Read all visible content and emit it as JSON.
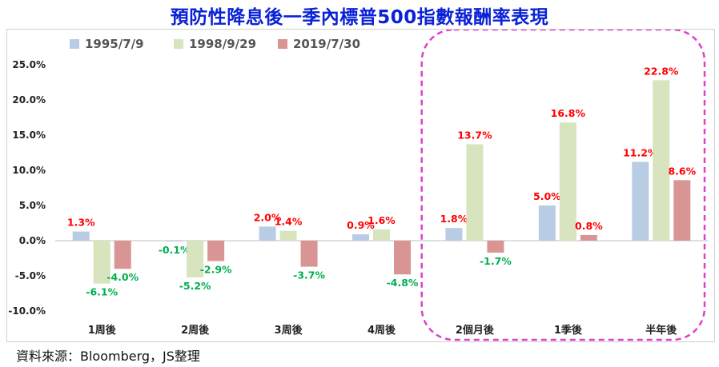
{
  "title": "預防性降息後一季內標普500指數報酬率表現",
  "source": "資料來源：Bloomberg，JS整理",
  "colors": {
    "series1": "#b8cce4",
    "series2": "#d7e4bd",
    "series3": "#d99594",
    "positive_label": "#ff0000",
    "negative_label": "#00b050",
    "highlight": "#e040c8",
    "title": "#0a22d6"
  },
  "chart_data": {
    "type": "bar",
    "title": "預防性降息後一季內標普500指數報酬率表現",
    "categories": [
      "1周後",
      "2周後",
      "3周後",
      "4周後",
      "2個月後",
      "1季後",
      "半年後"
    ],
    "series": [
      {
        "name": "1995/7/9",
        "values": [
          1.3,
          -0.1,
          2.0,
          0.9,
          1.8,
          5.0,
          11.2
        ]
      },
      {
        "name": "1998/9/29",
        "values": [
          -6.1,
          -5.2,
          1.4,
          1.6,
          13.7,
          16.8,
          22.8
        ]
      },
      {
        "name": "2019/7/30",
        "values": [
          -4.0,
          -2.9,
          -3.7,
          -4.8,
          -1.7,
          0.8,
          8.6
        ]
      }
    ],
    "yticks": [
      "25.0%",
      "20.0%",
      "15.0%",
      "10.0%",
      "5.0%",
      "0.0%",
      "-5.0%",
      "-10.0%"
    ],
    "ylim": [
      -10,
      25
    ],
    "xlabel": "",
    "ylabel": "",
    "legend_position": "top-left",
    "highlighted_categories": [
      "2個月後",
      "1季後",
      "半年後"
    ]
  }
}
